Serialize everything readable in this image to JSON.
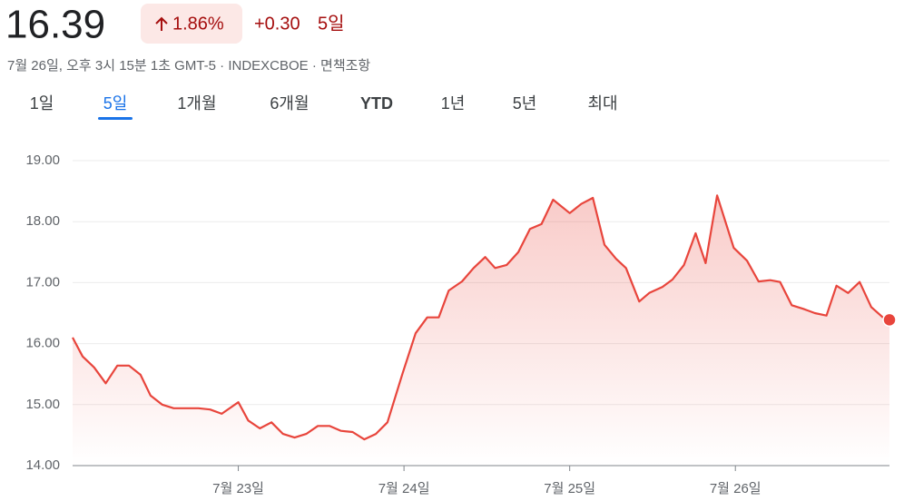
{
  "header": {
    "price": "16.39",
    "change_percent": "1.86%",
    "change": "+0.30",
    "period": "5일",
    "timestamp": "7월 26일, 오후 3시 15분 1초 GMT-5 · INDEXCBOE · 면책조항"
  },
  "tabs": {
    "items": [
      "1일",
      "5일",
      "1개월",
      "6개월",
      "YTD",
      "1년",
      "5년",
      "최대"
    ],
    "selected": 1
  },
  "chart_data": {
    "type": "line",
    "x": [
      0,
      0.06,
      0.13,
      0.2,
      0.27,
      0.34,
      0.41,
      0.47,
      0.54,
      0.61,
      0.68,
      0.76,
      0.83,
      0.9,
      1.0,
      1.06,
      1.13,
      1.2,
      1.27,
      1.34,
      1.41,
      1.48,
      1.55,
      1.62,
      1.69,
      1.76,
      1.83,
      1.9,
      1.99,
      2.07,
      2.14,
      2.21,
      2.27,
      2.35,
      2.42,
      2.49,
      2.55,
      2.62,
      2.69,
      2.76,
      2.83,
      2.9,
      3.0,
      3.07,
      3.14,
      3.21,
      3.28,
      3.34,
      3.42,
      3.48,
      3.56,
      3.62,
      3.69,
      3.76,
      3.82,
      3.89,
      3.99,
      4.07,
      4.14,
      4.21,
      4.27,
      4.34,
      4.41,
      4.48,
      4.55,
      4.61,
      4.68,
      4.75,
      4.82,
      4.89,
      4.93
    ],
    "values": [
      16.1,
      15.79,
      15.61,
      15.35,
      15.64,
      15.64,
      15.49,
      15.15,
      15.0,
      14.94,
      14.94,
      14.94,
      14.92,
      14.85,
      15.04,
      14.74,
      14.61,
      14.71,
      14.52,
      14.46,
      14.52,
      14.65,
      14.65,
      14.57,
      14.55,
      14.43,
      14.52,
      14.71,
      15.5,
      16.17,
      16.43,
      16.43,
      16.87,
      17.02,
      17.24,
      17.42,
      17.24,
      17.29,
      17.5,
      17.88,
      17.96,
      18.36,
      18.14,
      18.29,
      18.39,
      17.62,
      17.39,
      17.24,
      16.69,
      16.83,
      16.93,
      17.05,
      17.29,
      17.81,
      17.32,
      18.43,
      17.57,
      17.36,
      17.02,
      17.04,
      17.01,
      16.63,
      16.57,
      16.5,
      16.46,
      16.95,
      16.83,
      17.01,
      16.6,
      16.43,
      16.39
    ],
    "color": "#e8453c",
    "xlim": [
      0,
      4.93
    ],
    "xticks": [
      {
        "value": 1,
        "label": "7월 23일"
      },
      {
        "value": 2,
        "label": "7월 24일"
      },
      {
        "value": 3,
        "label": "7월 25일"
      },
      {
        "value": 4,
        "label": "7월 26일"
      }
    ],
    "ylim": [
      14,
      19
    ],
    "yticks": [
      {
        "value": 14,
        "label": "14.00"
      },
      {
        "value": 15,
        "label": "15.00"
      },
      {
        "value": 16,
        "label": "16.00"
      },
      {
        "value": 17,
        "label": "17.00"
      },
      {
        "value": 18,
        "label": "18.00"
      },
      {
        "value": 19,
        "label": "19.00"
      }
    ],
    "grid": true
  }
}
